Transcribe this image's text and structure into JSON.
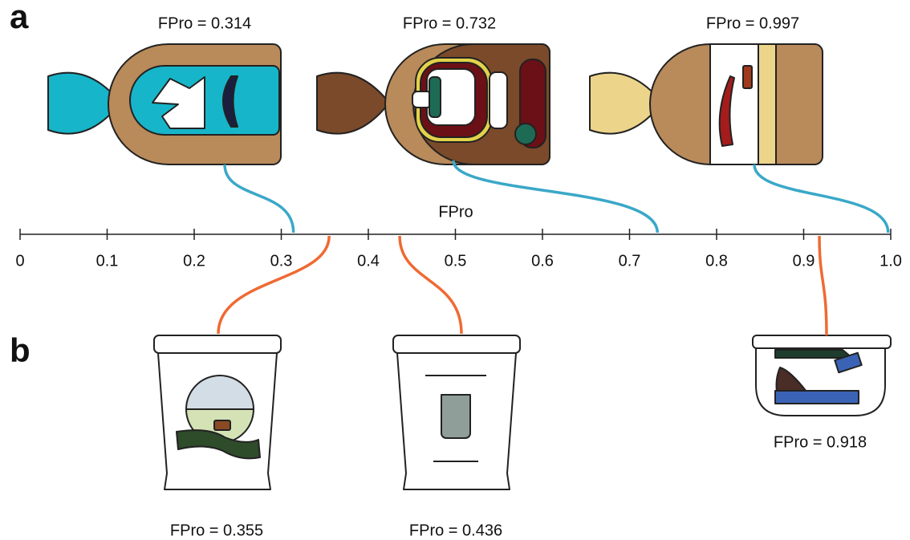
{
  "panel_a": {
    "label": "a",
    "items": [
      {
        "label": "FPro = 0.314",
        "value": 0.314
      },
      {
        "label": "FPro = 0.732",
        "value": 0.732
      },
      {
        "label": "FPro = 0.997",
        "value": 0.997
      }
    ]
  },
  "panel_b": {
    "label": "b",
    "items": [
      {
        "label": "FPro = 0.355",
        "value": 0.355
      },
      {
        "label": "FPro = 0.436",
        "value": 0.436
      },
      {
        "label": "FPro = 0.918",
        "value": 0.918
      }
    ]
  },
  "axis": {
    "label": "FPro",
    "xlim": [
      0,
      1
    ],
    "xticks": [
      0,
      0.1,
      0.2,
      0.3,
      0.4,
      0.5,
      0.6,
      0.7,
      0.8,
      0.9,
      {
        "value": 1,
        "label": "1.0"
      }
    ]
  }
}
